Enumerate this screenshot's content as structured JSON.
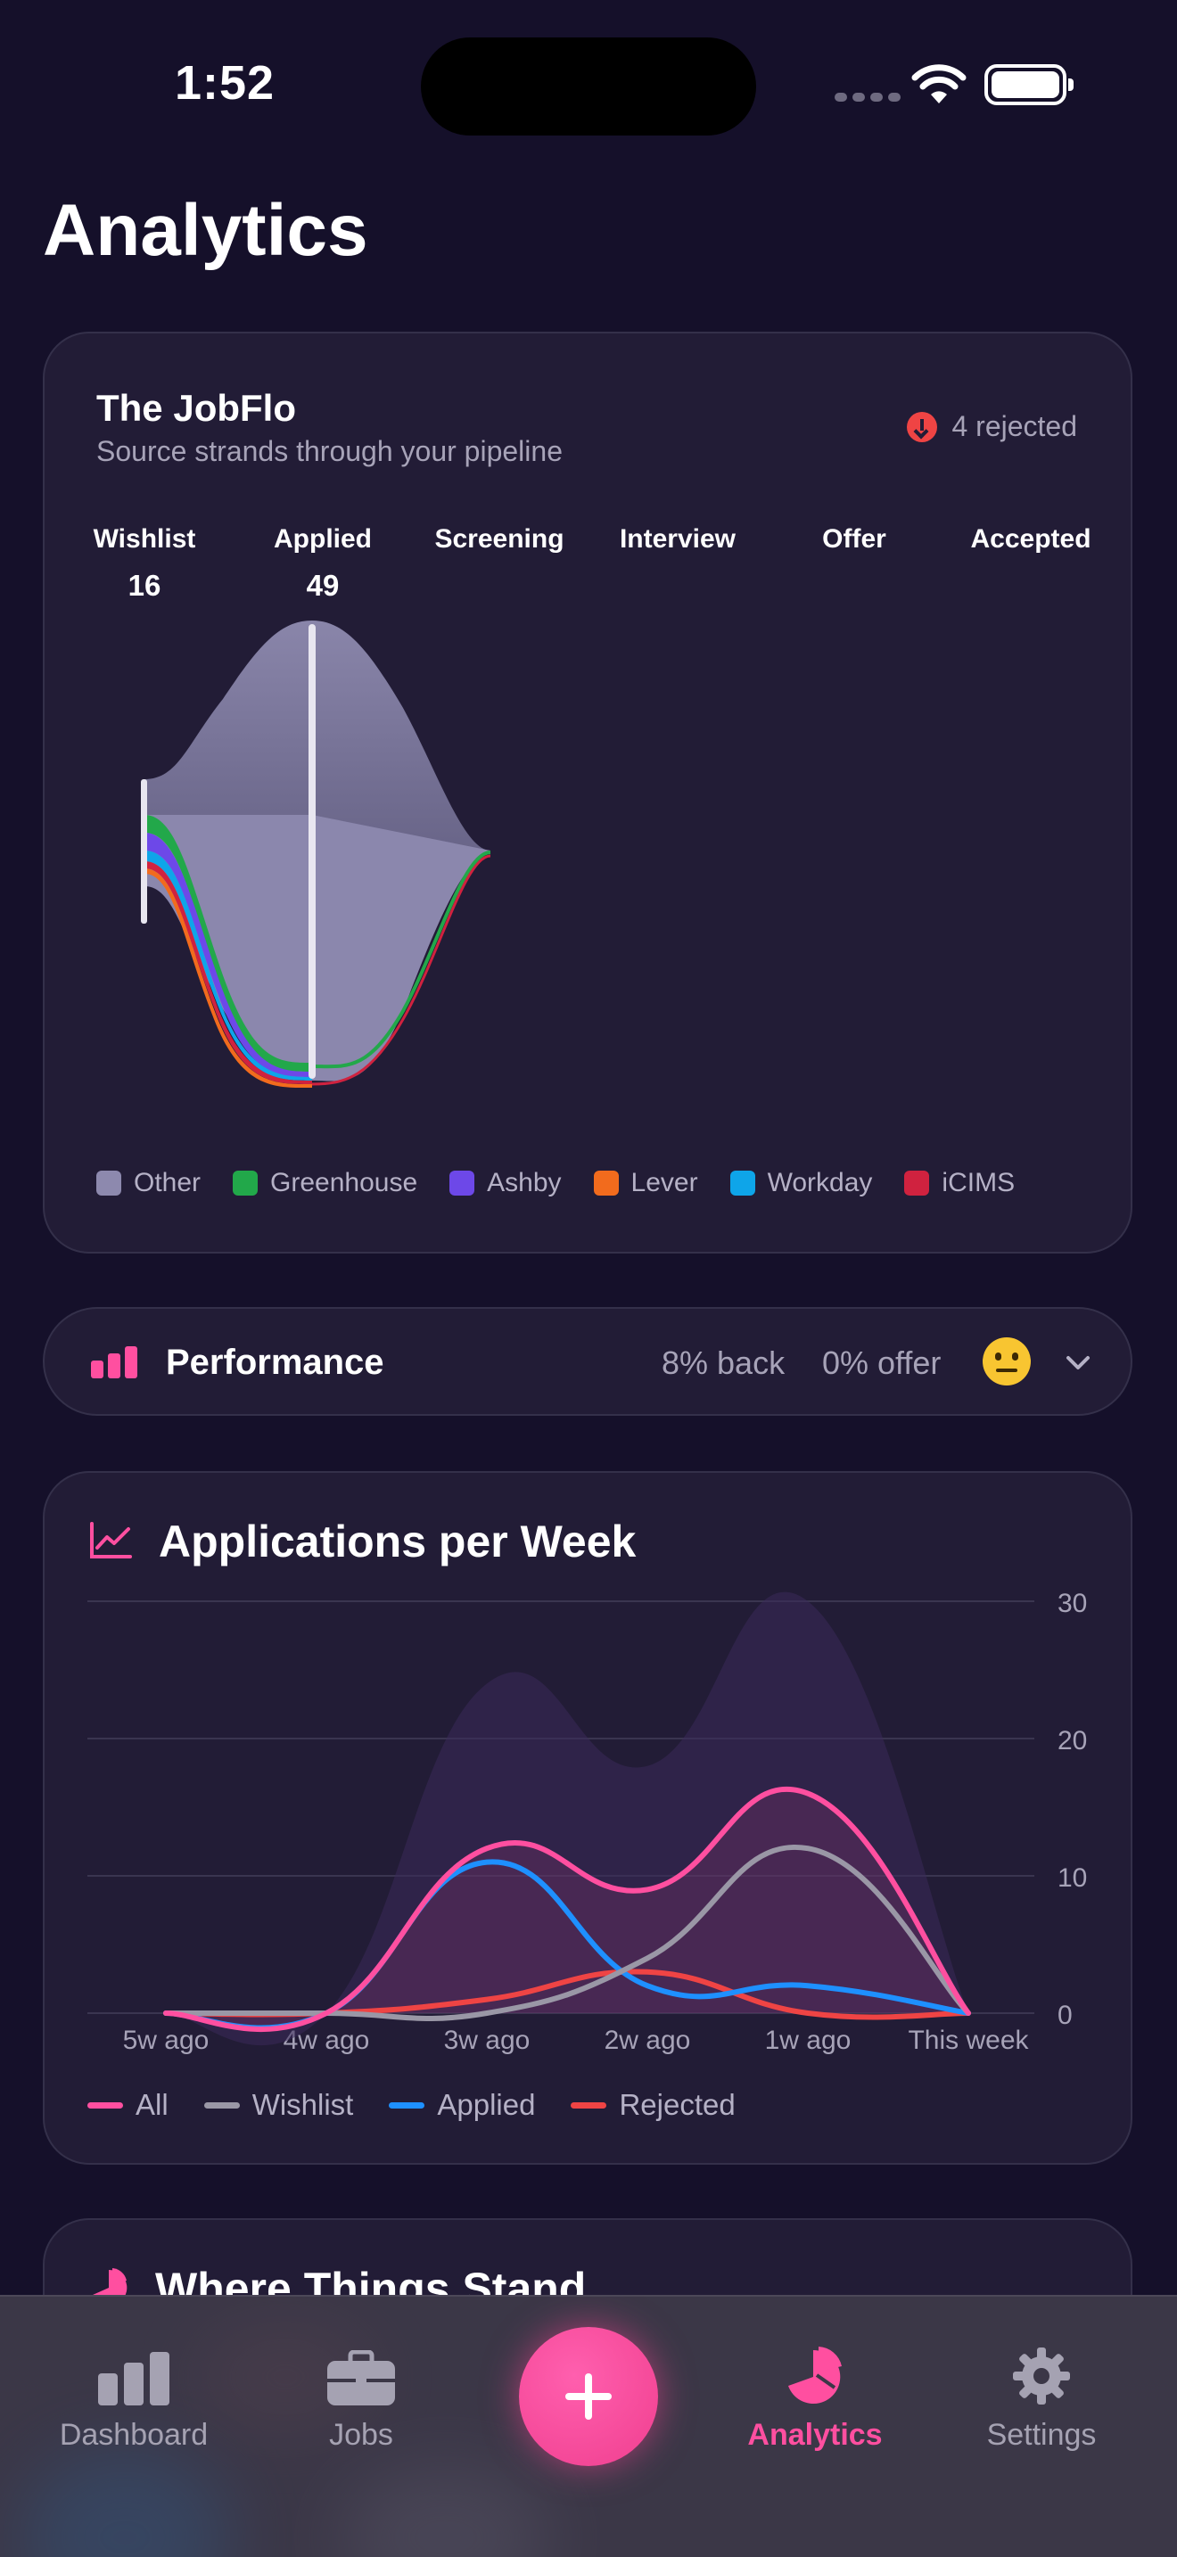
{
  "status_bar": {
    "time": "1:52"
  },
  "page": {
    "title": "Analytics"
  },
  "jobflo": {
    "title": "The JobFlo",
    "subtitle": "Source strands through your pipeline",
    "rejected_label": "4 rejected",
    "stages": [
      {
        "label": "Wishlist",
        "count": "16",
        "color": "#9e9ab0"
      },
      {
        "label": "Applied",
        "count": "49",
        "color": "#1e90ff"
      },
      {
        "label": "Screening",
        "count": "",
        "color": "#f59e3b"
      },
      {
        "label": "Interview",
        "count": "",
        "color": "#d946ef"
      },
      {
        "label": "Offer",
        "count": "",
        "color": "#22c55e"
      },
      {
        "label": "Accepted",
        "count": "",
        "color": "#22c55e"
      }
    ],
    "sources": [
      {
        "label": "Other",
        "color": "#8d89ae"
      },
      {
        "label": "Greenhouse",
        "color": "#22a84a"
      },
      {
        "label": "Ashby",
        "color": "#6d48e8"
      },
      {
        "label": "Lever",
        "color": "#f26b1d"
      },
      {
        "label": "Workday",
        "color": "#0ea5e9"
      },
      {
        "label": "iCIMS",
        "color": "#d0223f"
      }
    ]
  },
  "performance": {
    "title": "Performance",
    "back_rate": "8% back",
    "offer_rate": "0% offer",
    "accent": "#ff4fa0"
  },
  "apw": {
    "title": "Applications per Week"
  },
  "chart_data": {
    "type": "line",
    "title": "Applications per Week",
    "categories": [
      "5w ago",
      "4w ago",
      "3w ago",
      "2w ago",
      "1w ago",
      "This week"
    ],
    "ylim": [
      0,
      30
    ],
    "yticks": [
      0,
      10,
      20,
      30
    ],
    "grid": true,
    "legend": "bottom",
    "stacked_area_approx_max": 30,
    "series": [
      {
        "name": "All",
        "color": "#ff4fa0",
        "values": [
          0,
          0,
          12,
          9,
          16,
          0
        ]
      },
      {
        "name": "Wishlist",
        "color": "#9a97a6",
        "values": [
          0,
          0,
          0,
          4,
          12,
          0
        ]
      },
      {
        "name": "Applied",
        "color": "#1e90ff",
        "values": [
          0,
          0,
          11,
          2,
          2,
          0
        ]
      },
      {
        "name": "Rejected",
        "color": "#ef4444",
        "values": [
          0,
          0,
          1,
          3,
          0,
          0
        ]
      }
    ]
  },
  "wts": {
    "title": "Where Things Stand"
  },
  "tabbar": {
    "tabs": [
      {
        "label": "Dashboard"
      },
      {
        "label": "Jobs"
      },
      {
        "label": "Analytics"
      },
      {
        "label": "Settings"
      }
    ],
    "active_color": "#ff4fa0"
  }
}
